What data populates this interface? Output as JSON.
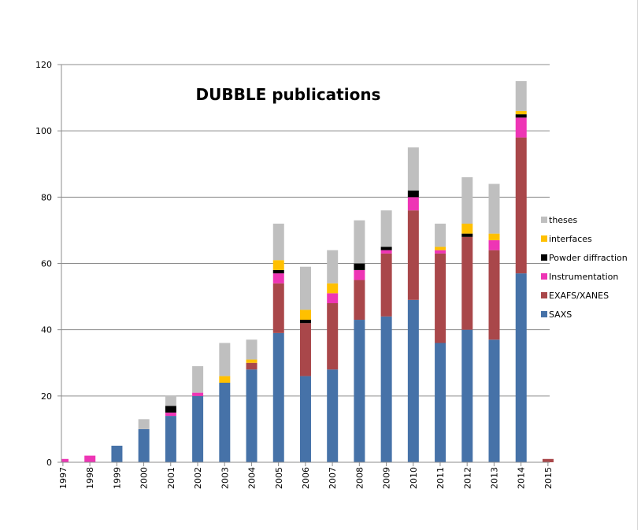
{
  "chart_data": {
    "type": "bar",
    "stacked": true,
    "title": "DUBBLE publications",
    "xlabel": "",
    "ylabel": "",
    "ylim": [
      0,
      120
    ],
    "yticks": [
      0,
      20,
      40,
      60,
      80,
      100,
      120
    ],
    "grid": true,
    "legend_position": "right",
    "categories": [
      "1997",
      "1998",
      "1999",
      "2000",
      "2001",
      "2002",
      "2003",
      "2004",
      "2005",
      "2006",
      "2007",
      "2008",
      "2009",
      "2010",
      "2011",
      "2012",
      "2013",
      "2014",
      "2015"
    ],
    "series": [
      {
        "name": "SAXS",
        "color": "#4672a8",
        "values": [
          0,
          0,
          5,
          10,
          14,
          20,
          24,
          28,
          39,
          26,
          28,
          43,
          44,
          49,
          36,
          40,
          37,
          57,
          0
        ]
      },
      {
        "name": "EXAFS/XANES",
        "color": "#a9474a",
        "values": [
          0,
          0,
          0,
          0,
          0,
          0,
          0,
          2,
          15,
          16,
          20,
          12,
          19,
          27,
          27,
          28,
          27,
          41,
          1
        ]
      },
      {
        "name": "Instrumentation",
        "color": "#ee35b5",
        "values": [
          1,
          2,
          0,
          0,
          1,
          1,
          0,
          0,
          3,
          0,
          3,
          3,
          1,
          4,
          1,
          0,
          3,
          6,
          0
        ]
      },
      {
        "name": "Powder diffraction",
        "color": "#000000",
        "values": [
          0,
          0,
          0,
          0,
          2,
          0,
          0,
          0,
          1,
          1,
          0,
          2,
          1,
          2,
          0,
          1,
          0,
          1,
          0
        ]
      },
      {
        "name": "interfaces",
        "color": "#ffc000",
        "values": [
          0,
          0,
          0,
          0,
          0,
          0,
          2,
          1,
          3,
          3,
          3,
          0,
          0,
          0,
          1,
          3,
          2,
          1,
          0
        ]
      },
      {
        "name": "theses",
        "color": "#bfbfbf",
        "values": [
          0,
          0,
          0,
          3,
          3,
          8,
          10,
          6,
          11,
          13,
          10,
          13,
          11,
          13,
          7,
          14,
          15,
          9,
          0
        ]
      }
    ]
  }
}
